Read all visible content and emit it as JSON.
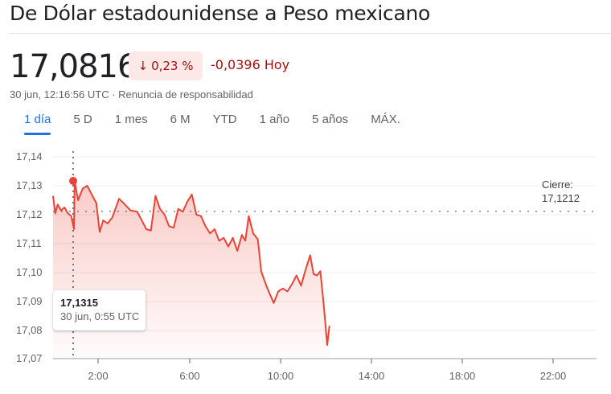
{
  "header": {
    "title": "De Dólar estadounidense a Peso mexicano"
  },
  "quote": {
    "price": "17,0816",
    "change_icon": "arrow-down-icon",
    "change_arrow": "↓",
    "change_percent": "0,23 %",
    "change_abs": "-0,0396 Hoy",
    "timestamp": "30 jun, 12:16:56 UTC",
    "separator": " · ",
    "disclaimer_link": "Renuncia de responsabilidad",
    "colors": {
      "negative": "#a50e0e",
      "negative_bg": "#fce8e6",
      "accent": "#1a73e8",
      "line": "#ea4335"
    }
  },
  "tabs": [
    {
      "label": "1 día",
      "active": true
    },
    {
      "label": "5 D",
      "active": false
    },
    {
      "label": "1 mes",
      "active": false
    },
    {
      "label": "6 M",
      "active": false
    },
    {
      "label": "YTD",
      "active": false
    },
    {
      "label": "1 año",
      "active": false
    },
    {
      "label": "5 años",
      "active": false
    },
    {
      "label": "MÁX.",
      "active": false
    }
  ],
  "chart": {
    "close_label": "Cierre:",
    "close_value": "17,1212",
    "tooltip_value": "17,1315",
    "tooltip_time": "30 jun, 0:55 UTC",
    "y_ticks": [
      "17,14",
      "17,13",
      "17,12",
      "17,11",
      "17,10",
      "17,09",
      "17,08",
      "17,07"
    ],
    "x_ticks": [
      "2:00",
      "6:00",
      "10:00",
      "14:00",
      "18:00",
      "22:00"
    ]
  },
  "chart_data": {
    "type": "line",
    "title": "De Dólar estadounidense a Peso mexicano",
    "xlabel": "",
    "ylabel": "",
    "x_unit": "UTC hour",
    "ylim": [
      17.07,
      17.14
    ],
    "xlim": [
      0,
      24
    ],
    "grid": true,
    "x_ticks": [
      "2:00",
      "6:00",
      "10:00",
      "14:00",
      "18:00",
      "22:00"
    ],
    "y_ticks": [
      17.14,
      17.13,
      17.12,
      17.11,
      17.1,
      17.09,
      17.08,
      17.07
    ],
    "previous_close": 17.1212,
    "highlighted_point": {
      "x": "0:55",
      "y": 17.1315
    },
    "current": 17.0816,
    "x": [
      0.0,
      0.1,
      0.2,
      0.35,
      0.5,
      0.65,
      0.8,
      0.92,
      0.95,
      1.1,
      1.3,
      1.5,
      1.7,
      1.9,
      2.05,
      2.2,
      2.4,
      2.6,
      2.9,
      3.1,
      3.4,
      3.7,
      3.9,
      4.1,
      4.3,
      4.5,
      4.7,
      4.9,
      5.1,
      5.3,
      5.5,
      5.7,
      5.9,
      6.1,
      6.3,
      6.5,
      6.7,
      6.9,
      7.1,
      7.3,
      7.5,
      7.7,
      7.9,
      8.1,
      8.3,
      8.45,
      8.6,
      8.8,
      9.0,
      9.15,
      9.3,
      9.5,
      9.7,
      9.9,
      10.1,
      10.3,
      10.5,
      10.7,
      10.9,
      11.1,
      11.3,
      11.45,
      11.6,
      11.75,
      11.9,
      12.05,
      12.15
    ],
    "values": [
      17.1265,
      17.1205,
      17.1235,
      17.1215,
      17.1225,
      17.1205,
      17.1195,
      17.115,
      17.1315,
      17.125,
      17.129,
      17.13,
      17.127,
      17.124,
      17.114,
      17.118,
      17.117,
      17.119,
      17.1255,
      17.124,
      17.1215,
      17.121,
      17.118,
      17.115,
      17.1145,
      17.1265,
      17.122,
      17.12,
      17.116,
      17.1155,
      17.122,
      17.121,
      17.1245,
      17.127,
      17.12,
      17.1195,
      17.116,
      17.1135,
      17.115,
      17.111,
      17.112,
      17.109,
      17.112,
      17.1075,
      17.113,
      17.111,
      17.1195,
      17.1135,
      17.1115,
      17.1005,
      17.097,
      17.093,
      17.0895,
      17.0935,
      17.0945,
      17.0935,
      17.096,
      17.099,
      17.0955,
      17.101,
      17.106,
      17.0995,
      17.099,
      17.1005,
      17.0885,
      17.075,
      17.0816
    ]
  }
}
